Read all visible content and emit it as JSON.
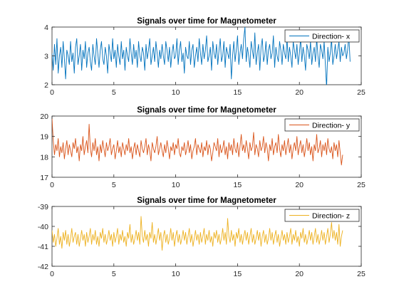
{
  "chart_data": [
    {
      "type": "line",
      "title": "Signals over time for Magnetometer",
      "xlabel": "",
      "ylabel": "",
      "xlim": [
        0,
        25
      ],
      "ylim": [
        2,
        4
      ],
      "xticks": [
        0,
        5,
        10,
        15,
        20,
        25
      ],
      "yticks": [
        2,
        3,
        4
      ],
      "grid": false,
      "legend_position": "top-right",
      "series": [
        {
          "name": "Direction- x",
          "color": "#0072BD",
          "x_range": [
            0,
            24.1
          ],
          "x_step": 0.1,
          "values": [
            3.1,
            2.5,
            3.4,
            2.7,
            3.6,
            2.4,
            3.0,
            3.3,
            2.6,
            3.5,
            2.9,
            2.2,
            3.2,
            3.0,
            2.7,
            3.5,
            2.8,
            3.1,
            2.4,
            3.3,
            3.6,
            2.7,
            3.0,
            3.4,
            2.5,
            3.2,
            2.9,
            3.5,
            2.6,
            3.1,
            3.3,
            2.8,
            2.5,
            3.4,
            3.0,
            2.7,
            3.6,
            3.1,
            2.6,
            3.2,
            3.5,
            2.9,
            2.7,
            3.3,
            3.0,
            2.4,
            3.4,
            3.1,
            2.8,
            3.6,
            2.9,
            3.2,
            2.6,
            3.4,
            3.0,
            2.7,
            3.5,
            2.9,
            3.2,
            2.5,
            3.3,
            3.0,
            2.8,
            3.6,
            3.1,
            2.7,
            3.4,
            2.9,
            3.2,
            2.6,
            3.5,
            3.0,
            2.8,
            3.3,
            3.1,
            2.5,
            3.4,
            2.9,
            3.2,
            3.6,
            2.7,
            3.0,
            3.3,
            2.8,
            3.5,
            3.1,
            2.6,
            3.2,
            2.9,
            3.4,
            3.0,
            2.7,
            3.5,
            3.2,
            2.8,
            3.3,
            2.6,
            3.1,
            3.4,
            2.9,
            3.0,
            3.6,
            2.7,
            3.2,
            3.5,
            2.8,
            3.1,
            2.4,
            3.3,
            3.0,
            2.9,
            3.5,
            2.7,
            3.2,
            3.4,
            2.6,
            3.0,
            3.3,
            2.8,
            3.6,
            3.1,
            2.7,
            3.4,
            2.9,
            3.2,
            3.7,
            2.8,
            3.0,
            3.3,
            2.5,
            3.5,
            3.1,
            2.9,
            3.4,
            2.7,
            3.2,
            3.6,
            2.8,
            3.0,
            3.5,
            2.6,
            3.3,
            3.1,
            2.9,
            3.4,
            2.2,
            3.0,
            3.5,
            2.8,
            3.2,
            3.7,
            2.7,
            3.1,
            3.4,
            2.9,
            3.6,
            4.0,
            2.8,
            3.3,
            3.0,
            2.6,
            3.5,
            3.2,
            2.9,
            3.8,
            2.7,
            3.1,
            3.4,
            2.5,
            3.3,
            3.6,
            2.8,
            3.0,
            3.5,
            2.7,
            3.2,
            3.4,
            2.9,
            3.1,
            3.7,
            2.6,
            3.3,
            3.0,
            2.8,
            3.5,
            3.2,
            2.7,
            3.4,
            3.1,
            2.9,
            3.6,
            2.8,
            3.3,
            3.0,
            2.6,
            3.5,
            3.2,
            2.9,
            3.4,
            2.7,
            3.1,
            3.6,
            2.8,
            3.3,
            3.0,
            2.5,
            3.4,
            3.2,
            2.9,
            3.5,
            2.7,
            3.1,
            3.3,
            2.8,
            3.6,
            3.0,
            2.6,
            3.4,
            3.2,
            2.9,
            3.5,
            2.7,
            1.9,
            3.3,
            2.8,
            3.1,
            3.6,
            2.7,
            3.0,
            3.4,
            2.9,
            3.2,
            3.5,
            2.8,
            3.3,
            3.0,
            3.1,
            3.4,
            2.9,
            3.2,
            3.7,
            2.8
          ]
        }
      ]
    },
    {
      "type": "line",
      "title": "Signals over time for Magnetometer",
      "xlabel": "",
      "ylabel": "",
      "xlim": [
        0,
        25
      ],
      "ylim": [
        17,
        20
      ],
      "xticks": [
        0,
        5,
        10,
        15,
        20,
        25
      ],
      "yticks": [
        17,
        18,
        19,
        20
      ],
      "grid": false,
      "legend_position": "top-right",
      "series": [
        {
          "name": "Direction- y",
          "color": "#D95319",
          "x_range": [
            0,
            24.1
          ],
          "x_step": 0.1,
          "values": [
            19.9,
            18.8,
            18.1,
            18.6,
            18.3,
            18.9,
            18.0,
            18.5,
            18.2,
            18.7,
            17.9,
            18.4,
            18.8,
            18.1,
            18.6,
            18.3,
            18.0,
            18.7,
            18.4,
            18.9,
            18.2,
            18.5,
            17.8,
            18.6,
            18.3,
            19.0,
            18.1,
            18.5,
            18.8,
            18.2,
            19.6,
            18.4,
            18.0,
            18.7,
            18.3,
            18.9,
            18.1,
            18.5,
            17.8,
            18.6,
            18.2,
            18.8,
            18.4,
            18.0,
            18.7,
            18.3,
            18.5,
            18.9,
            18.1,
            18.4,
            18.6,
            17.9,
            18.3,
            18.8,
            18.2,
            18.5,
            18.0,
            18.7,
            18.4,
            18.1,
            18.6,
            18.3,
            18.9,
            18.2,
            18.5,
            17.9,
            18.4,
            18.7,
            18.1,
            18.6,
            18.3,
            18.0,
            18.8,
            18.4,
            18.2,
            18.5,
            18.9,
            18.1,
            18.6,
            18.3,
            17.8,
            18.7,
            18.4,
            18.2,
            18.5,
            19.0,
            18.1,
            18.4,
            18.7,
            18.3,
            18.0,
            18.6,
            18.2,
            18.8,
            18.4,
            17.9,
            18.5,
            18.3,
            18.7,
            18.1,
            18.6,
            18.4,
            18.9,
            18.2,
            18.0,
            18.5,
            18.3,
            18.7,
            18.1,
            18.4,
            18.8,
            18.2,
            18.6,
            17.9,
            18.3,
            18.5,
            18.9,
            18.1,
            18.6,
            18.4,
            18.2,
            18.7,
            18.0,
            18.5,
            18.3,
            18.8,
            18.1,
            18.6,
            18.4,
            17.8,
            18.2,
            18.7,
            18.5,
            18.3,
            18.9,
            18.0,
            18.6,
            18.2,
            18.4,
            18.8,
            18.1,
            18.5,
            17.9,
            18.7,
            18.3,
            18.6,
            18.1,
            18.9,
            18.4,
            18.2,
            18.7,
            18.0,
            18.5,
            19.1,
            18.3,
            18.6,
            18.2,
            18.8,
            18.4,
            17.9,
            18.7,
            18.3,
            18.5,
            19.2,
            18.1,
            18.6,
            18.4,
            18.0,
            18.8,
            18.3,
            18.5,
            19.0,
            18.2,
            18.7,
            18.4,
            17.8,
            18.6,
            18.3,
            18.9,
            18.1,
            18.5,
            18.7,
            18.2,
            19.1,
            18.4,
            18.0,
            18.6,
            18.3,
            18.8,
            18.1,
            18.5,
            18.9,
            18.2,
            18.6,
            17.9,
            18.4,
            18.7,
            18.3,
            19.0,
            18.1,
            18.5,
            18.8,
            18.2,
            18.6,
            18.0,
            18.4,
            18.9,
            18.3,
            18.7,
            18.1,
            18.5,
            17.8,
            18.6,
            18.3,
            19.1,
            18.2,
            18.4,
            18.8,
            18.0,
            18.6,
            18.3,
            18.7,
            18.1,
            18.9,
            18.4,
            18.2,
            18.5,
            17.9,
            18.7,
            18.3,
            18.6,
            18.0,
            18.8,
            18.2,
            17.6,
            18.1
          ]
        }
      ]
    },
    {
      "type": "line",
      "title": "Signals over time for Magnetometer",
      "xlabel": "",
      "ylabel": "",
      "xlim": [
        0,
        25
      ],
      "ylim": [
        -42,
        -39
      ],
      "xticks": [
        0,
        5,
        10,
        15,
        20,
        25
      ],
      "yticks": [
        -42,
        -41,
        -40,
        -39
      ],
      "grid": false,
      "legend_position": "top-right",
      "series": [
        {
          "name": "Direction- z",
          "color": "#EDB120",
          "x_range": [
            0,
            24.1
          ],
          "x_step": 0.1,
          "values": [
            -40.2,
            -40.8,
            -40.4,
            -41.0,
            -40.6,
            -40.1,
            -40.9,
            -40.5,
            -41.1,
            -40.3,
            -40.7,
            -40.2,
            -40.9,
            -40.4,
            -41.0,
            -40.6,
            -40.1,
            -40.8,
            -40.5,
            -40.3,
            -40.9,
            -40.4,
            -41.0,
            -40.6,
            -40.2,
            -40.7,
            -40.4,
            -41.0,
            -40.3,
            -40.8,
            -40.5,
            -40.1,
            -40.9,
            -40.4,
            -40.7,
            -40.2,
            -40.9,
            -40.5,
            -41.0,
            -40.3,
            -40.6,
            -40.1,
            -40.8,
            -40.4,
            -40.9,
            -40.6,
            -40.2,
            -40.7,
            -40.4,
            -41.0,
            -40.3,
            -40.8,
            -40.5,
            -40.1,
            -40.9,
            -40.4,
            -40.7,
            -40.2,
            -40.8,
            -40.5,
            -41.0,
            -40.3,
            -40.6,
            -39.9,
            -40.8,
            -40.4,
            -40.9,
            -40.6,
            -40.2,
            -40.7,
            -40.3,
            -40.9,
            -39.5,
            -40.5,
            -40.8,
            -40.2,
            -40.7,
            -40.4,
            -41.0,
            -40.3,
            -40.6,
            -39.8,
            -40.8,
            -40.4,
            -40.9,
            -40.5,
            -40.1,
            -40.7,
            -40.3,
            -41.2,
            -40.5,
            -40.2,
            -40.8,
            -40.4,
            -40.9,
            -40.6,
            -40.1,
            -40.7,
            -40.3,
            -41.0,
            -40.5,
            -40.2,
            -40.8,
            -40.4,
            -40.9,
            -40.6,
            -40.2,
            -40.7,
            -40.3,
            -40.9,
            -40.5,
            -40.1,
            -40.8,
            -40.4,
            -41.0,
            -40.6,
            -40.2,
            -40.7,
            -40.4,
            -40.9,
            -40.3,
            -40.8,
            -40.5,
            -40.1,
            -40.9,
            -40.4,
            -40.7,
            -40.2,
            -40.8,
            -40.5,
            -41.0,
            -40.3,
            -40.6,
            -40.2,
            -40.8,
            -40.4,
            -40.9,
            -40.6,
            -40.1,
            -40.7,
            -40.3,
            -40.9,
            -39.6,
            -40.5,
            -40.8,
            -40.2,
            -40.7,
            -40.4,
            -41.0,
            -40.3,
            -40.6,
            -40.1,
            -40.8,
            -40.4,
            -40.9,
            -40.5,
            -40.2,
            -40.7,
            -40.3,
            -40.9,
            -40.5,
            -40.1,
            -40.8,
            -40.4,
            -40.9,
            -40.6,
            -40.2,
            -40.7,
            -40.3,
            -41.0,
            -40.5,
            -40.2,
            -40.8,
            -40.4,
            -40.9,
            -40.6,
            -40.1,
            -40.7,
            -40.3,
            -40.9,
            -40.5,
            -40.2,
            -40.8,
            -40.4,
            -41.0,
            -40.6,
            -40.2,
            -40.7,
            -40.4,
            -40.9,
            -40.3,
            -40.8,
            -40.5,
            -40.1,
            -40.9,
            -40.4,
            -40.7,
            -40.2,
            -40.8,
            -40.5,
            -41.0,
            -40.3,
            -40.6,
            -40.1,
            -40.8,
            -40.4,
            -40.9,
            -40.6,
            -40.2,
            -40.7,
            -40.3,
            -40.9,
            -40.5,
            -40.1,
            -40.8,
            -40.4,
            -40.9,
            -40.6,
            -40.2,
            -40.7,
            -40.3,
            -40.9,
            -40.5,
            -40.1,
            -40.8,
            -40.4,
            -39.8,
            -40.6,
            -40.2,
            -40.7,
            -40.3,
            -40.9,
            -39.9,
            -41.0,
            -40.5,
            -40.2
          ]
        }
      ]
    }
  ]
}
